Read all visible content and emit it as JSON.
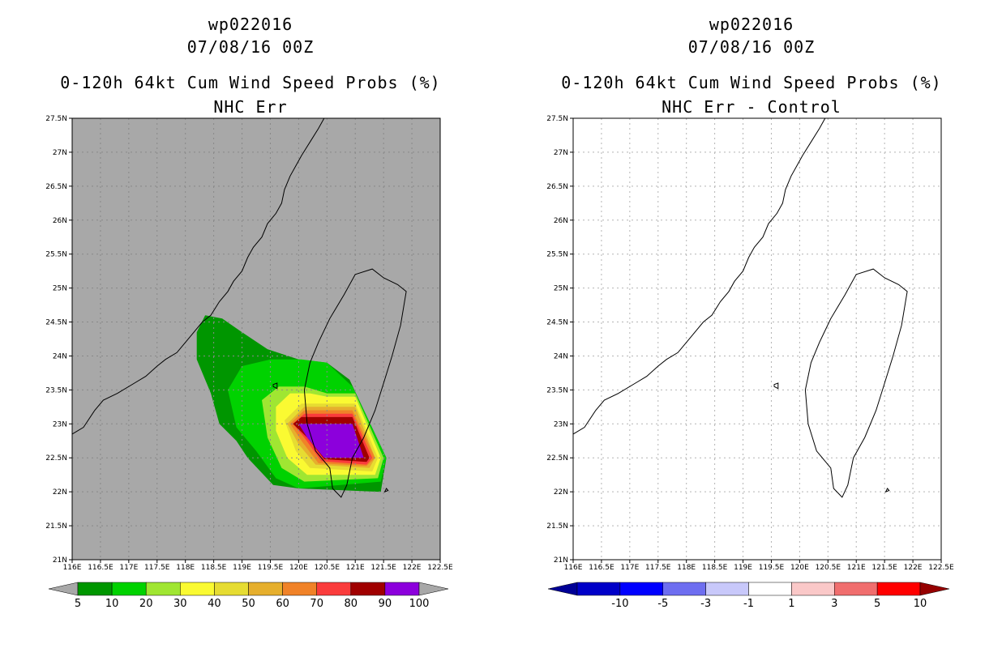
{
  "left_panel": {
    "title_line1": "wp022016",
    "title_line2": "07/08/16 00Z",
    "title_line3": "0-120h 64kt Cum Wind Speed Probs (%)",
    "title_line4": "NHC Err",
    "background_color": "#a8a8a8",
    "colorbar": {
      "labels": [
        "5",
        "10",
        "20",
        "30",
        "40",
        "50",
        "60",
        "70",
        "80",
        "90",
        "100"
      ],
      "colors": [
        "#009600",
        "#00d200",
        "#a0e632",
        "#fafa32",
        "#e6dc32",
        "#e6af2d",
        "#f08228",
        "#fa3c3c",
        "#a00000",
        "#8c00dc"
      ],
      "under_color": "#a8a8a8",
      "over_color": "#a8a8a8"
    }
  },
  "right_panel": {
    "title_line1": "wp022016",
    "title_line2": "07/08/16 00Z",
    "title_line3": "0-120h 64kt Cum Wind Speed Probs (%)",
    "title_line4": "NHC Err - Control",
    "background_color": "#ffffff",
    "colorbar": {
      "labels": [
        "-10",
        "-5",
        "-3",
        "-1",
        "1",
        "3",
        "5",
        "10"
      ],
      "colors": [
        "#0000c8",
        "#0000ff",
        "#6e6ef0",
        "#c8c8fa",
        "#ffffff",
        "#fac8c8",
        "#f06e6e",
        "#ff0000"
      ],
      "under_color": "#000096",
      "over_color": "#960000"
    }
  },
  "axes": {
    "lat_labels": [
      "27.5N",
      "27N",
      "26.5N",
      "26N",
      "25.5N",
      "25N",
      "24.5N",
      "24N",
      "23.5N",
      "23N",
      "22.5N",
      "22N",
      "21.5N",
      "21N"
    ],
    "lon_labels": [
      "116E",
      "116.5E",
      "117E",
      "117.5E",
      "118E",
      "118.5E",
      "119E",
      "119.5E",
      "120E",
      "120.5E",
      "121E",
      "121.5E",
      "122E",
      "122.5E"
    ],
    "lat_range": [
      21,
      27.5
    ],
    "lon_range": [
      116,
      122.5
    ]
  },
  "probability_contours": [
    {
      "level": "5",
      "color": "#009600",
      "points": [
        [
          118.2,
          24.35
        ],
        [
          118.35,
          24.6
        ],
        [
          118.65,
          24.55
        ],
        [
          119.0,
          24.35
        ],
        [
          119.45,
          24.1
        ],
        [
          120.0,
          23.95
        ],
        [
          120.5,
          23.9
        ],
        [
          120.9,
          23.65
        ],
        [
          121.55,
          22.5
        ],
        [
          121.45,
          22.0
        ],
        [
          120.0,
          22.05
        ],
        [
          119.55,
          22.1
        ],
        [
          119.1,
          22.5
        ],
        [
          118.9,
          22.75
        ],
        [
          118.6,
          23.0
        ],
        [
          118.45,
          23.45
        ],
        [
          118.2,
          23.95
        ]
      ]
    },
    {
      "level": "10",
      "color": "#00d200",
      "points": [
        [
          118.75,
          23.5
        ],
        [
          119.0,
          23.85
        ],
        [
          119.5,
          23.95
        ],
        [
          120.05,
          23.95
        ],
        [
          120.5,
          23.9
        ],
        [
          120.95,
          23.55
        ],
        [
          121.55,
          22.5
        ],
        [
          121.45,
          22.15
        ],
        [
          120.0,
          22.05
        ],
        [
          119.6,
          22.2
        ],
        [
          119.25,
          22.6
        ],
        [
          118.9,
          22.95
        ]
      ]
    },
    {
      "level": "20",
      "color": "#a0e632",
      "points": [
        [
          119.35,
          23.35
        ],
        [
          119.65,
          23.55
        ],
        [
          120.1,
          23.55
        ],
        [
          120.5,
          23.45
        ],
        [
          121.0,
          23.45
        ],
        [
          121.5,
          22.5
        ],
        [
          121.4,
          22.2
        ],
        [
          120.1,
          22.15
        ],
        [
          119.7,
          22.35
        ],
        [
          119.45,
          22.8
        ]
      ]
    },
    {
      "level": "30",
      "color": "#fafa32",
      "points": [
        [
          119.6,
          23.25
        ],
        [
          119.85,
          23.45
        ],
        [
          120.2,
          23.45
        ],
        [
          120.5,
          23.4
        ],
        [
          121.0,
          23.4
        ],
        [
          121.45,
          22.5
        ],
        [
          121.35,
          22.25
        ],
        [
          120.15,
          22.25
        ],
        [
          119.8,
          22.5
        ],
        [
          119.6,
          22.9
        ]
      ]
    },
    {
      "level": "40",
      "color": "#e6dc32",
      "points": [
        [
          119.75,
          23.05
        ],
        [
          120.05,
          23.3
        ],
        [
          120.6,
          23.3
        ],
        [
          121.0,
          23.3
        ],
        [
          121.4,
          22.5
        ],
        [
          121.3,
          22.3
        ],
        [
          120.2,
          22.35
        ],
        [
          119.95,
          22.6
        ]
      ]
    },
    {
      "level": "50",
      "color": "#e6af2d",
      "points": [
        [
          119.8,
          23.0
        ],
        [
          120.1,
          23.25
        ],
        [
          121.0,
          23.25
        ],
        [
          121.35,
          22.5
        ],
        [
          121.25,
          22.35
        ],
        [
          120.3,
          22.4
        ],
        [
          120.0,
          22.7
        ]
      ]
    },
    {
      "level": "60",
      "color": "#f08228",
      "points": [
        [
          119.85,
          23.0
        ],
        [
          120.1,
          23.2
        ],
        [
          120.95,
          23.2
        ],
        [
          121.35,
          22.5
        ],
        [
          121.2,
          22.38
        ],
        [
          120.35,
          22.42
        ],
        [
          120.05,
          22.75
        ]
      ]
    },
    {
      "level": "70",
      "color": "#fa3c3c",
      "points": [
        [
          119.9,
          23.0
        ],
        [
          120.1,
          23.15
        ],
        [
          120.95,
          23.15
        ],
        [
          121.3,
          22.5
        ],
        [
          121.2,
          22.4
        ],
        [
          120.4,
          22.45
        ],
        [
          120.1,
          22.8
        ]
      ]
    },
    {
      "level": "80",
      "color": "#a00000",
      "points": [
        [
          119.9,
          23.0
        ],
        [
          120.05,
          23.1
        ],
        [
          120.95,
          23.1
        ],
        [
          121.25,
          22.5
        ],
        [
          121.2,
          22.44
        ],
        [
          120.45,
          22.48
        ],
        [
          120.15,
          22.8
        ]
      ]
    },
    {
      "level": "90",
      "color": "#8c00dc",
      "points": [
        [
          120.0,
          23.0
        ],
        [
          120.95,
          23.0
        ],
        [
          121.15,
          22.5
        ],
        [
          120.45,
          22.5
        ],
        [
          120.15,
          22.8
        ]
      ]
    }
  ],
  "coastline_mainland": [
    [
      116.0,
      22.85
    ],
    [
      116.2,
      22.95
    ],
    [
      116.4,
      23.2
    ],
    [
      116.55,
      23.35
    ],
    [
      116.8,
      23.45
    ],
    [
      117.1,
      23.6
    ],
    [
      117.3,
      23.7
    ],
    [
      117.5,
      23.85
    ],
    [
      117.65,
      23.95
    ],
    [
      117.85,
      24.05
    ],
    [
      118.0,
      24.2
    ],
    [
      118.15,
      24.35
    ],
    [
      118.3,
      24.5
    ],
    [
      118.45,
      24.6
    ],
    [
      118.6,
      24.8
    ],
    [
      118.75,
      24.95
    ],
    [
      118.85,
      25.1
    ],
    [
      119.0,
      25.25
    ],
    [
      119.1,
      25.45
    ],
    [
      119.2,
      25.6
    ],
    [
      119.35,
      25.75
    ],
    [
      119.45,
      25.95
    ],
    [
      119.6,
      26.1
    ],
    [
      119.7,
      26.25
    ],
    [
      119.75,
      26.45
    ],
    [
      119.85,
      26.65
    ],
    [
      119.95,
      26.8
    ],
    [
      120.05,
      26.95
    ],
    [
      120.2,
      27.15
    ],
    [
      120.35,
      27.35
    ],
    [
      120.45,
      27.5
    ]
  ],
  "coastline_taiwan": [
    [
      121.0,
      25.2
    ],
    [
      121.3,
      25.28
    ],
    [
      121.5,
      25.15
    ],
    [
      121.75,
      25.05
    ],
    [
      121.9,
      24.95
    ],
    [
      121.85,
      24.7
    ],
    [
      121.8,
      24.45
    ],
    [
      121.65,
      24.0
    ],
    [
      121.5,
      23.6
    ],
    [
      121.35,
      23.2
    ],
    [
      121.15,
      22.8
    ],
    [
      120.95,
      22.5
    ],
    [
      120.85,
      22.1
    ],
    [
      120.75,
      21.92
    ],
    [
      120.6,
      22.05
    ],
    [
      120.55,
      22.35
    ],
    [
      120.3,
      22.6
    ],
    [
      120.15,
      23.0
    ],
    [
      120.1,
      23.5
    ],
    [
      120.2,
      23.9
    ],
    [
      120.35,
      24.2
    ],
    [
      120.55,
      24.55
    ],
    [
      120.8,
      24.9
    ],
    [
      121.0,
      25.2
    ]
  ],
  "islands": [
    [
      [
        119.55,
        23.58
      ],
      [
        119.62,
        23.6
      ],
      [
        119.62,
        23.52
      ],
      [
        119.55,
        23.55
      ]
    ],
    [
      [
        121.55,
        22.05
      ],
      [
        121.58,
        22.02
      ],
      [
        121.52,
        22.0
      ]
    ]
  ]
}
